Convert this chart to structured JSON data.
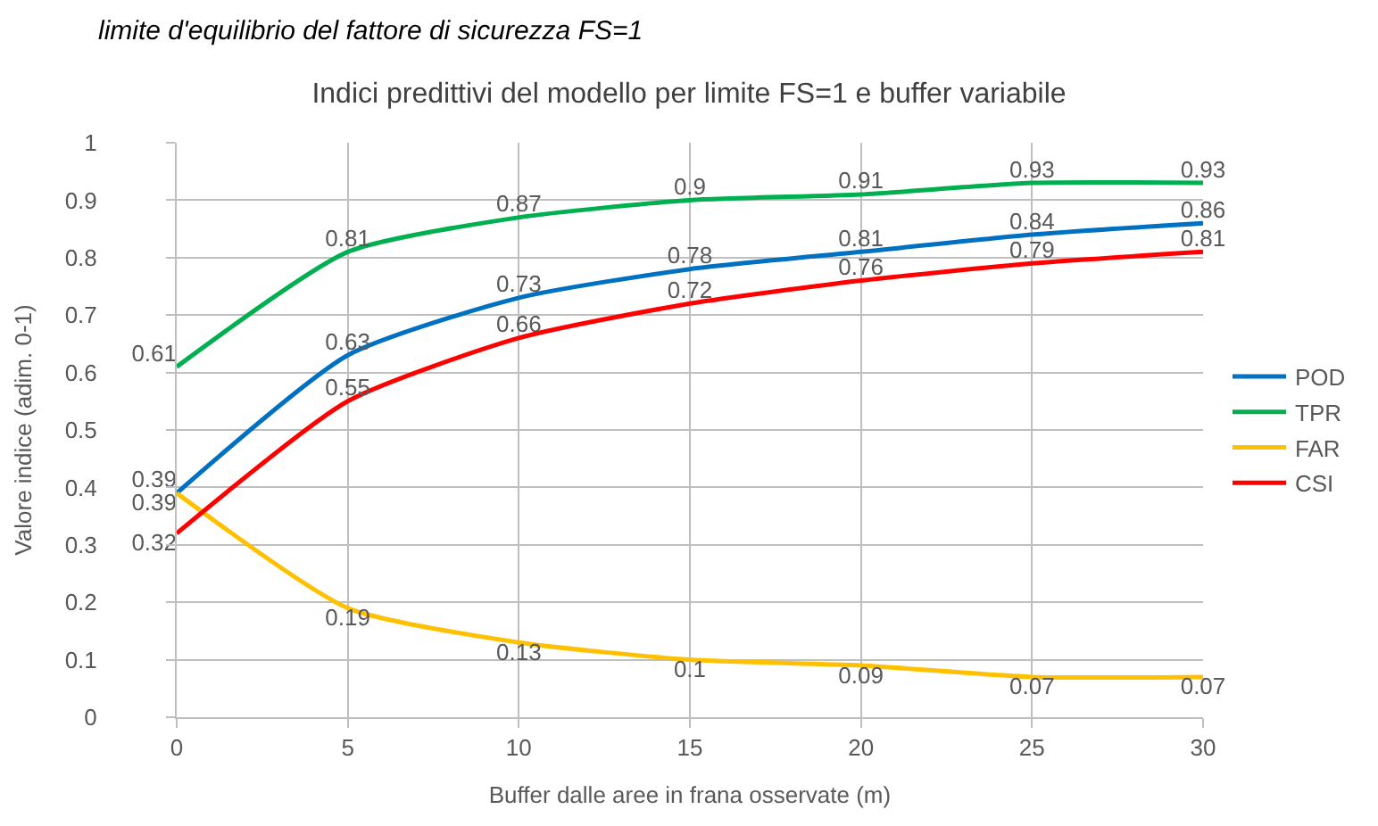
{
  "chart_data": {
    "type": "line",
    "title": "Indici predittivi del modello per limite FS=1 e buffer variabile",
    "annotations": [
      "limite d'equilibrio del fattore di sicurezza FS=1"
    ],
    "xlabel": "Buffer dalle aree in frana osservate (m)",
    "ylabel": "Valore indice (adim. 0-1)",
    "x": [
      0,
      5,
      10,
      15,
      20,
      25,
      30
    ],
    "series": [
      {
        "name": "POD",
        "color": "#0070c0",
        "values": [
          0.39,
          0.63,
          0.73,
          0.78,
          0.81,
          0.84,
          0.86
        ]
      },
      {
        "name": "TPR",
        "color": "#00b050",
        "values": [
          0.61,
          0.81,
          0.87,
          0.9,
          0.91,
          0.93,
          0.93
        ]
      },
      {
        "name": "FAR",
        "color": "#ffc000",
        "values": [
          0.39,
          0.19,
          0.13,
          0.1,
          0.09,
          0.07,
          0.07
        ]
      },
      {
        "name": "CSI",
        "color": "#ff0000",
        "values": [
          0.32,
          0.55,
          0.66,
          0.72,
          0.76,
          0.79,
          0.81
        ]
      }
    ],
    "xlim": [
      0,
      30
    ],
    "xticks": [
      0,
      5,
      10,
      15,
      20,
      25,
      30
    ],
    "ylim": [
      0,
      1
    ],
    "yticks": [
      0,
      0.1,
      0.2,
      0.3,
      0.4,
      0.5,
      0.6,
      0.7,
      0.8,
      0.9,
      1
    ],
    "grid": true,
    "legend": "right",
    "data_labels": true,
    "marker": "none",
    "line_style": "solid"
  }
}
